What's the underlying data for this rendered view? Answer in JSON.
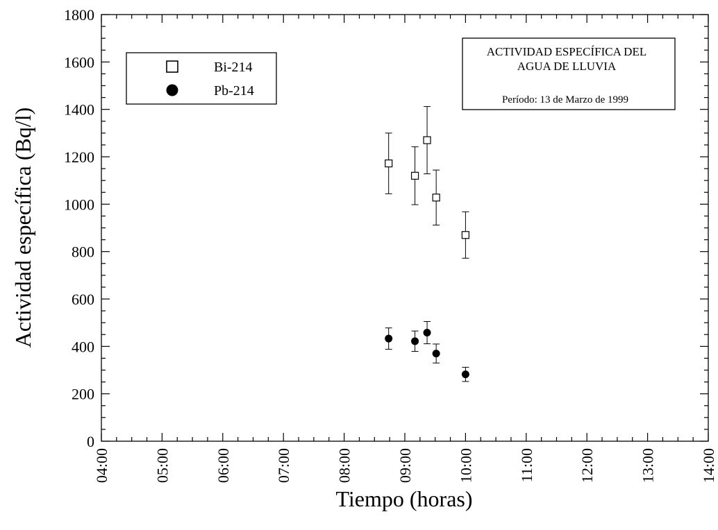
{
  "chart_data": {
    "type": "scatter",
    "xlabel": "Tiempo (horas)",
    "ylabel": "Actividad específica (Bq/l)",
    "xlim": [
      "04:00",
      "14:00"
    ],
    "ylim": [
      0,
      1800
    ],
    "x_ticks": [
      "04:00",
      "05:00",
      "06:00",
      "07:00",
      "08:00",
      "09:00",
      "10:00",
      "11:00",
      "12:00",
      "13:00",
      "14:00"
    ],
    "y_ticks": [
      0,
      200,
      400,
      600,
      800,
      1000,
      1200,
      1400,
      1600,
      1800
    ],
    "grid": false,
    "legend_position": "top-left",
    "title_box": {
      "line1": "ACTIVIDAD ESPECÍFICA DEL",
      "line2": "AGUA DE LLUVIA",
      "period": "Período: 13 de Marzo de 1999"
    },
    "series": [
      {
        "name": "Bi-214",
        "marker": "open-square",
        "color": "#000000",
        "points": [
          {
            "x": "08:44",
            "y": 1172,
            "err": 128
          },
          {
            "x": "09:10",
            "y": 1120,
            "err": 122
          },
          {
            "x": "09:22",
            "y": 1270,
            "err": 142
          },
          {
            "x": "09:31",
            "y": 1028,
            "err": 116
          },
          {
            "x": "10:00",
            "y": 870,
            "err": 98
          }
        ]
      },
      {
        "name": "Pb-214",
        "marker": "filled-circle",
        "color": "#000000",
        "points": [
          {
            "x": "08:44",
            "y": 433,
            "err": 45
          },
          {
            "x": "09:10",
            "y": 422,
            "err": 43
          },
          {
            "x": "09:22",
            "y": 458,
            "err": 47
          },
          {
            "x": "09:31",
            "y": 370,
            "err": 40
          },
          {
            "x": "10:00",
            "y": 282,
            "err": 30
          }
        ]
      }
    ]
  }
}
